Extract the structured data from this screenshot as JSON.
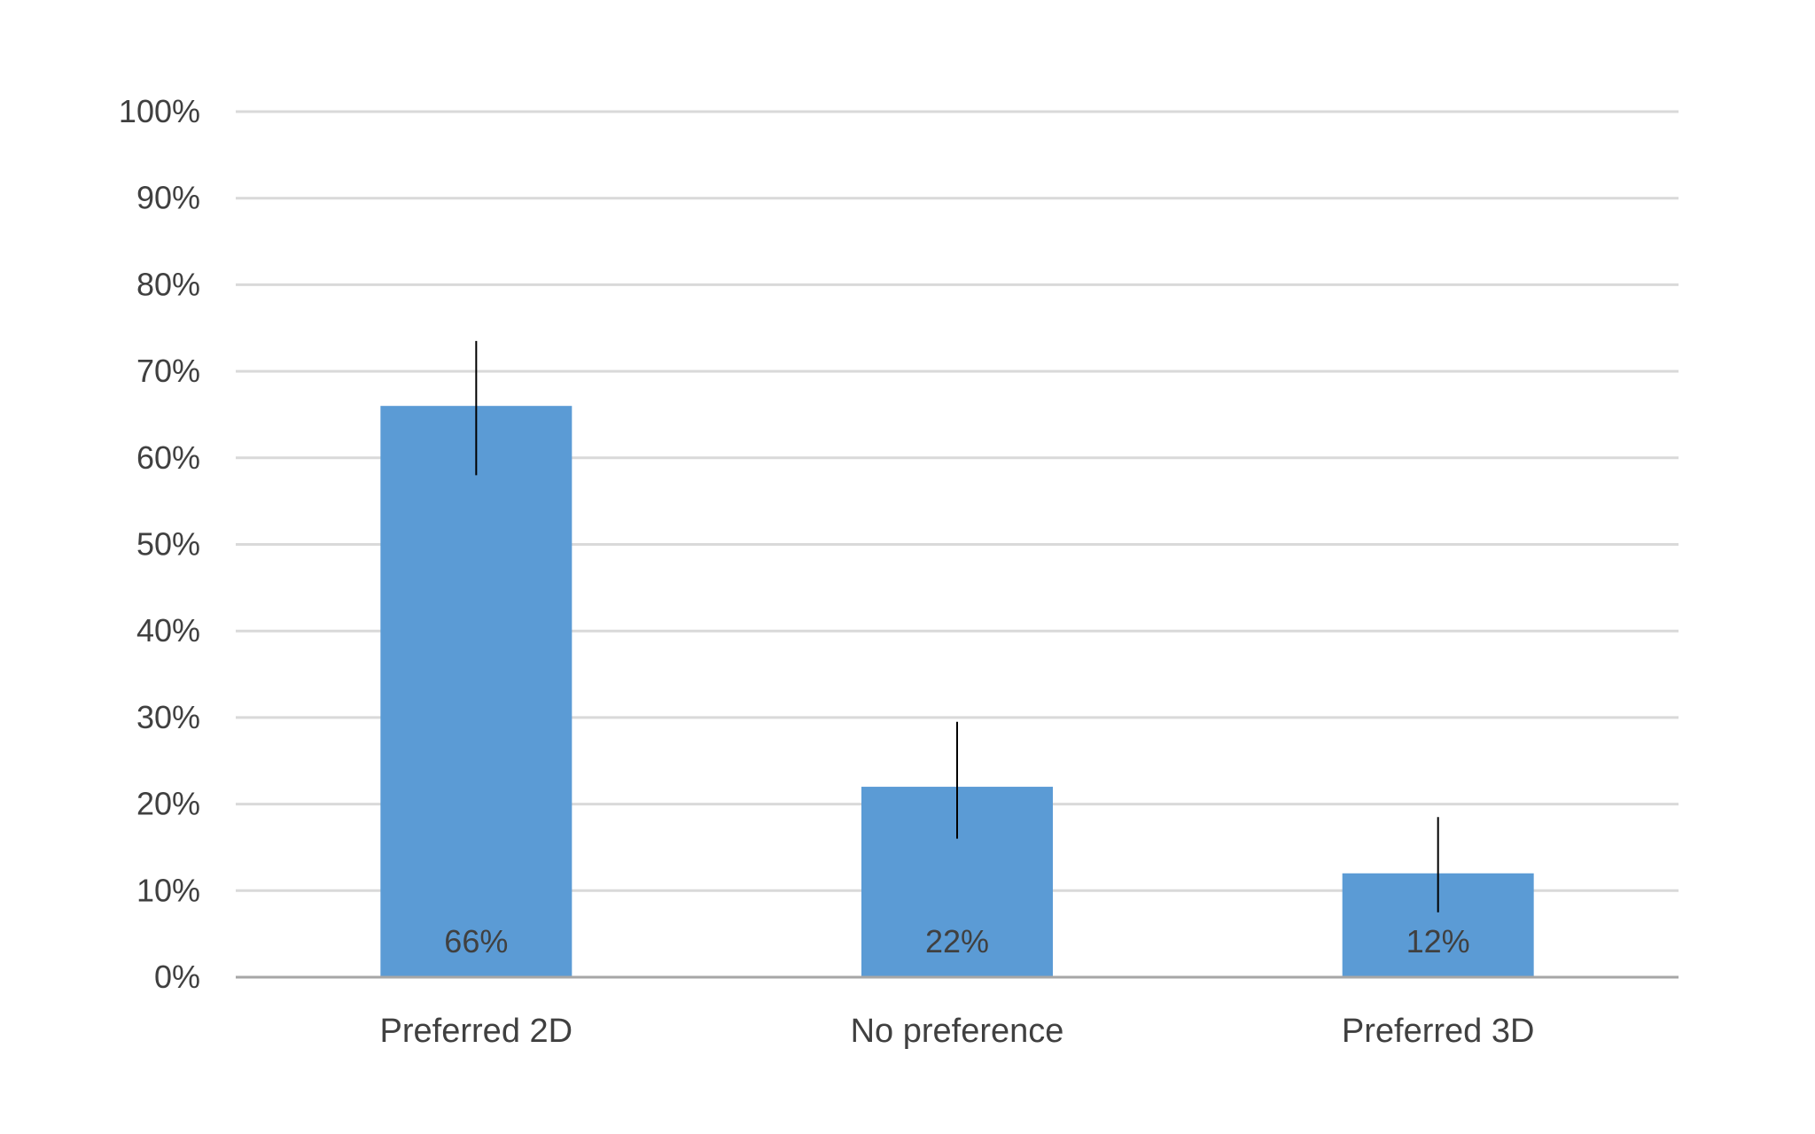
{
  "chart_data": {
    "type": "bar",
    "categories": [
      "Preferred 2D",
      "No preference",
      "Preferred 3D"
    ],
    "values": [
      66,
      22,
      12
    ],
    "data_labels": [
      "66%",
      "22%",
      "12%"
    ],
    "error_bars": [
      {
        "low": 58,
        "high": 73.5
      },
      {
        "low": 16,
        "high": 29.5
      },
      {
        "low": 7.5,
        "high": 18.5
      }
    ],
    "ylim": [
      0,
      100
    ],
    "y_ticks": [
      0,
      10,
      20,
      30,
      40,
      50,
      60,
      70,
      80,
      90,
      100
    ],
    "y_tick_labels": [
      "0%",
      "10%",
      "20%",
      "30%",
      "40%",
      "50%",
      "60%",
      "70%",
      "80%",
      "90%",
      "100%"
    ],
    "grid": true,
    "legend": "none",
    "colors": {
      "bar": "#5B9BD5",
      "grid": "#D9D9D9",
      "axis": "#A6A6A6",
      "error_bar": "#000000",
      "text": "#404040"
    }
  }
}
